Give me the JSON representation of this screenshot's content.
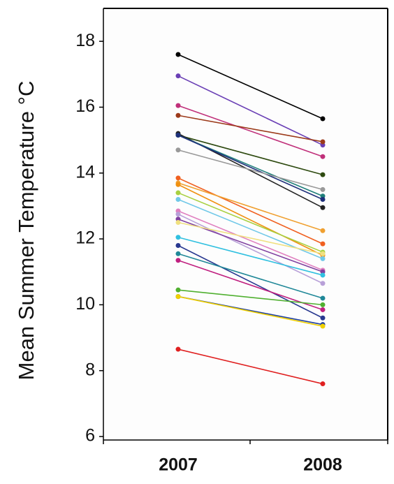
{
  "chart_data": {
    "type": "line",
    "y_label": "Mean Summer Temperature °C",
    "categories": [
      "2007",
      "2008"
    ],
    "ylim": [
      6,
      19
    ],
    "yticks": [
      6,
      8,
      10,
      12,
      14,
      16,
      18
    ],
    "series": [
      {
        "color": "#000000",
        "values": [
          17.6,
          15.65
        ]
      },
      {
        "color": "#6a3fb5",
        "values": [
          16.95,
          14.85
        ]
      },
      {
        "color": "#c0307a",
        "values": [
          16.05,
          14.5
        ]
      },
      {
        "color": "#9c3a1a",
        "values": [
          15.75,
          14.95
        ]
      },
      {
        "color": "#2e4a10",
        "values": [
          15.15,
          13.95
        ]
      },
      {
        "color": "#222222",
        "values": [
          15.2,
          12.95
        ]
      },
      {
        "color": "#1f7f7a",
        "values": [
          15.15,
          13.3
        ]
      },
      {
        "color": "#1e2f7a",
        "values": [
          15.15,
          13.2
        ]
      },
      {
        "color": "#999999",
        "values": [
          14.7,
          13.5
        ]
      },
      {
        "color": "#f06020",
        "values": [
          13.85,
          11.85
        ]
      },
      {
        "color": "#f0a030",
        "values": [
          13.7,
          12.25
        ]
      },
      {
        "color": "#f09010",
        "values": [
          13.65,
          11.5
        ]
      },
      {
        "color": "#a8d040",
        "values": [
          13.4,
          11.6
        ]
      },
      {
        "color": "#70c8e8",
        "values": [
          13.2,
          11.4
        ]
      },
      {
        "color": "#e080c0",
        "values": [
          12.85,
          11.05
        ]
      },
      {
        "color": "#b8a0d8",
        "values": [
          12.75,
          10.65
        ]
      },
      {
        "color": "#8040a0",
        "values": [
          12.6,
          11.0
        ]
      },
      {
        "color": "#f0e080",
        "values": [
          12.5,
          11.55
        ]
      },
      {
        "color": "#30c0e0",
        "values": [
          12.05,
          10.9
        ]
      },
      {
        "color": "#283890",
        "values": [
          11.8,
          9.6
        ]
      },
      {
        "color": "#208898",
        "values": [
          11.55,
          10.2
        ]
      },
      {
        "color": "#c02080",
        "values": [
          11.35,
          9.85
        ]
      },
      {
        "color": "#50b030",
        "values": [
          10.45,
          10.0
        ]
      },
      {
        "color": "#2040a0",
        "values": [
          10.25,
          9.4
        ]
      },
      {
        "color": "#f0d000",
        "values": [
          10.25,
          9.35
        ]
      },
      {
        "color": "#e02020",
        "values": [
          8.65,
          7.6
        ]
      }
    ]
  }
}
